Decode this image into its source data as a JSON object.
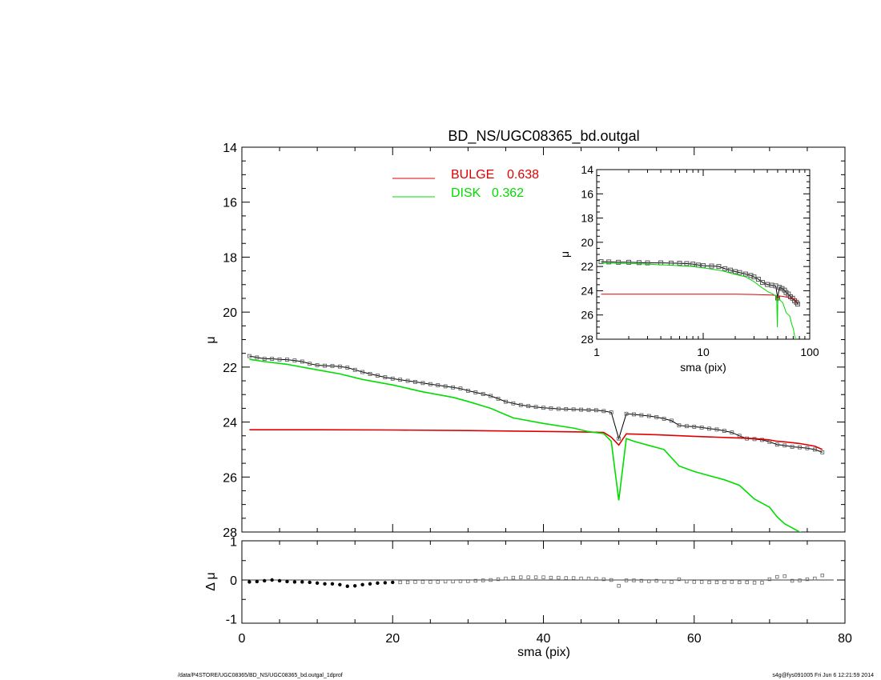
{
  "colors": {
    "bulge": "#e00000",
    "disk": "#00dd00",
    "data": "#000000",
    "residual_points": "#666666"
  },
  "footer": {
    "left": "/data/P4STORE/UGC08365/BD_NS/UGC08365_bd.outgal_1dprof",
    "right": "s4g@fys091005  Fri Jun  6 12:21:59 2014"
  },
  "chart_data": [
    {
      "id": "main",
      "type": "line",
      "title": "BD_NS/UGC08365_bd.outgal",
      "xlabel": "",
      "ylabel": "μ",
      "xlim": [
        0,
        80
      ],
      "ylim": [
        28,
        14
      ],
      "yticks": [
        "14",
        "16",
        "18",
        "20",
        "22",
        "24",
        "26",
        "28"
      ],
      "legend": {
        "position": "top-center",
        "entries": [
          {
            "label": "BULGE",
            "value": "0.638",
            "color": "#e00000"
          },
          {
            "label": "DISK",
            "value": "0.362",
            "color": "#00dd00"
          }
        ]
      },
      "series": [
        {
          "name": "BULGE",
          "x": [
            1,
            5,
            10,
            20,
            30,
            40,
            45,
            48,
            49,
            50,
            51,
            55,
            60,
            65,
            68,
            70,
            71,
            72,
            74,
            76,
            77
          ],
          "y": [
            24.28,
            24.28,
            24.28,
            24.29,
            24.31,
            24.34,
            24.36,
            24.38,
            24.55,
            24.84,
            24.43,
            24.46,
            24.52,
            24.57,
            24.6,
            24.65,
            24.7,
            24.72,
            24.78,
            24.88,
            25.0
          ]
        },
        {
          "name": "DISK",
          "x": [
            1,
            3,
            6,
            8,
            10,
            13,
            16,
            20,
            24,
            28,
            30,
            33,
            36,
            40,
            44,
            46,
            48,
            49,
            50,
            51,
            52,
            54,
            56,
            58,
            60,
            62,
            64,
            66,
            68,
            70,
            71,
            72,
            73,
            74,
            75,
            75.3
          ],
          "y": [
            21.72,
            21.8,
            21.9,
            22.0,
            22.1,
            22.25,
            22.45,
            22.65,
            22.9,
            23.1,
            23.25,
            23.5,
            23.85,
            24.05,
            24.22,
            24.35,
            24.42,
            24.7,
            26.85,
            24.6,
            24.7,
            24.85,
            25.0,
            25.6,
            25.8,
            25.95,
            26.1,
            26.3,
            26.8,
            27.1,
            27.45,
            27.7,
            27.85,
            28.0,
            28.1,
            28.2
          ]
        },
        {
          "name": "data",
          "x": [
            1,
            2,
            3,
            4,
            5,
            6,
            7,
            8,
            9,
            10,
            11,
            12,
            13,
            14,
            15,
            16,
            17,
            18,
            19,
            20,
            21,
            22,
            23,
            24,
            25,
            26,
            27,
            28,
            29,
            30,
            31,
            32,
            33,
            34,
            35,
            36,
            37,
            38,
            39,
            40,
            41,
            42,
            43,
            44,
            45,
            46,
            47,
            48,
            49,
            50,
            51,
            52,
            53,
            54,
            55,
            56,
            57,
            58,
            59,
            60,
            61,
            62,
            63,
            64,
            65,
            66,
            67,
            68,
            69,
            70,
            71,
            72,
            73,
            74,
            75,
            76,
            77
          ],
          "y": [
            21.6,
            21.65,
            21.7,
            21.7,
            21.72,
            21.73,
            21.76,
            21.8,
            21.88,
            21.93,
            21.95,
            21.96,
            21.98,
            22.02,
            22.1,
            22.18,
            22.25,
            22.31,
            22.37,
            22.42,
            22.46,
            22.5,
            22.54,
            22.58,
            22.62,
            22.66,
            22.7,
            22.74,
            22.78,
            22.86,
            22.92,
            22.98,
            23.05,
            23.15,
            23.26,
            23.32,
            23.38,
            23.42,
            23.45,
            23.48,
            23.5,
            23.52,
            23.53,
            23.54,
            23.55,
            23.56,
            23.57,
            23.6,
            23.65,
            24.6,
            23.7,
            23.72,
            23.75,
            23.78,
            23.82,
            23.88,
            23.95,
            24.12,
            24.15,
            24.17,
            24.2,
            24.24,
            24.27,
            24.32,
            24.38,
            24.5,
            24.6,
            24.62,
            24.65,
            24.72,
            24.82,
            24.85,
            24.9,
            24.92,
            24.95,
            25.0,
            25.1
          ]
        }
      ]
    },
    {
      "id": "residual",
      "type": "scatter",
      "title": "",
      "xlabel": "sma (pix)",
      "ylabel": "Δ μ",
      "xlim": [
        0,
        80
      ],
      "ylim": [
        -1.1,
        1
      ],
      "xticks": [
        "0",
        "20",
        "40",
        "60",
        "80"
      ],
      "yticks": [
        "1",
        "0",
        "-1"
      ],
      "series": [
        {
          "name": "residual",
          "x": [
            1,
            2,
            3,
            4,
            5,
            6,
            7,
            8,
            9,
            10,
            11,
            12,
            13,
            14,
            15,
            16,
            17,
            18,
            19,
            20,
            21,
            22,
            23,
            24,
            25,
            26,
            27,
            28,
            29,
            30,
            31,
            32,
            33,
            34,
            35,
            36,
            37,
            38,
            39,
            40,
            41,
            42,
            43,
            44,
            45,
            46,
            47,
            48,
            49,
            50,
            51,
            52,
            53,
            54,
            55,
            56,
            57,
            58,
            59,
            60,
            61,
            62,
            63,
            64,
            65,
            66,
            67,
            68,
            69,
            70,
            71,
            72,
            73,
            74,
            75,
            76,
            77
          ],
          "y": [
            -0.05,
            -0.04,
            -0.02,
            0.0,
            -0.02,
            -0.04,
            -0.05,
            -0.05,
            -0.06,
            -0.08,
            -0.1,
            -0.1,
            -0.12,
            -0.16,
            -0.15,
            -0.12,
            -0.1,
            -0.08,
            -0.07,
            -0.06,
            -0.06,
            -0.06,
            -0.05,
            -0.05,
            -0.05,
            -0.05,
            -0.04,
            -0.04,
            -0.03,
            -0.03,
            -0.02,
            -0.01,
            0.0,
            0.02,
            0.04,
            0.06,
            0.07,
            0.07,
            0.07,
            0.07,
            0.06,
            0.06,
            0.05,
            0.05,
            0.04,
            0.04,
            0.03,
            0.02,
            0.0,
            -0.15,
            -0.01,
            -0.01,
            -0.02,
            -0.03,
            -0.02,
            -0.04,
            -0.05,
            0.02,
            -0.04,
            -0.05,
            -0.05,
            -0.06,
            -0.06,
            -0.06,
            -0.05,
            -0.06,
            -0.06,
            -0.07,
            -0.07,
            0.02,
            0.08,
            0.1,
            -0.02,
            -0.01,
            0.02,
            0.04,
            0.12
          ]
        }
      ]
    },
    {
      "id": "inset",
      "type": "line",
      "title": "",
      "xlabel": "sma (pix)",
      "ylabel": "μ",
      "xscale": "log",
      "xlim": [
        1,
        100
      ],
      "ylim": [
        28,
        14
      ],
      "xticks": [
        "1",
        "10",
        "100"
      ],
      "yticks": [
        "14",
        "16",
        "18",
        "20",
        "22",
        "24",
        "26",
        "28"
      ],
      "series": [
        {
          "name": "BULGE",
          "x": [
            1.1,
            2,
            5,
            10,
            20,
            30,
            40,
            45,
            48,
            49,
            50,
            52,
            55,
            60,
            65,
            70,
            75,
            77
          ],
          "y": [
            24.28,
            24.28,
            24.28,
            24.28,
            24.29,
            24.31,
            24.34,
            24.36,
            24.38,
            24.55,
            24.84,
            24.43,
            24.46,
            24.52,
            24.57,
            24.65,
            24.85,
            25.0
          ]
        },
        {
          "name": "DISK",
          "x": [
            1.1,
            2,
            3,
            5,
            8,
            10,
            15,
            20,
            25,
            30,
            35,
            40,
            44,
            48,
            49,
            49.6,
            50.2,
            51,
            53,
            56,
            60,
            65,
            68,
            70,
            72,
            74,
            75.3
          ],
          "y": [
            21.72,
            21.75,
            21.8,
            21.9,
            22.0,
            22.1,
            22.35,
            22.65,
            22.85,
            23.25,
            23.7,
            24.05,
            24.22,
            24.42,
            24.7,
            27.0,
            24.8,
            24.6,
            24.8,
            25.0,
            25.8,
            26.1,
            26.8,
            27.1,
            27.7,
            28.0,
            28.2
          ]
        },
        {
          "name": "data",
          "x": [
            1.1,
            1.3,
            1.6,
            2,
            2.5,
            3,
            4,
            5,
            6,
            7,
            8,
            9,
            10,
            12,
            14,
            16,
            18,
            20,
            22,
            25,
            28,
            30,
            33,
            36,
            40,
            44,
            48,
            50,
            52,
            55,
            58,
            60,
            63,
            66,
            69,
            72,
            75,
            77
          ],
          "y": [
            21.6,
            21.62,
            21.65,
            21.65,
            21.68,
            21.7,
            21.7,
            21.72,
            21.73,
            21.76,
            21.8,
            21.88,
            21.93,
            21.96,
            22.0,
            22.18,
            22.3,
            22.42,
            22.5,
            22.62,
            22.74,
            22.86,
            23.05,
            23.32,
            23.48,
            23.54,
            23.6,
            24.6,
            23.72,
            23.82,
            23.95,
            24.15,
            24.27,
            24.5,
            24.62,
            24.82,
            24.95,
            25.1
          ]
        }
      ]
    }
  ]
}
